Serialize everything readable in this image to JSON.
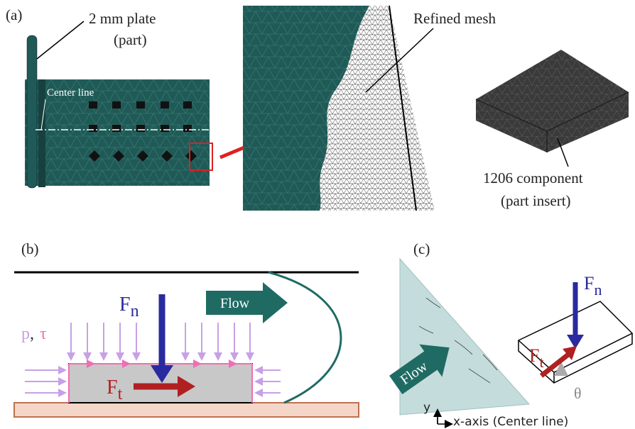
{
  "panel_a": {
    "label": "(a)",
    "plate_label": [
      "2 mm plate",
      "(part)"
    ],
    "center_line": "Center line",
    "mesh_label": "Refined mesh",
    "component_label": [
      "1206 component",
      "(part insert)"
    ]
  },
  "panel_b": {
    "label": "(b)",
    "flow": "Flow",
    "pressure": "p",
    "comma": ",",
    "shear": "τ",
    "normal_force": {
      "symbol": "F",
      "subscript": "n"
    },
    "tangential_force": {
      "symbol": "F",
      "subscript": "t"
    }
  },
  "panel_c": {
    "label": "(c)",
    "flow": "Flow",
    "normal_force": {
      "symbol": "F",
      "subscript": "n"
    },
    "tangential_force": {
      "symbol": "F",
      "subscript": "t"
    },
    "angle": "θ",
    "y_axis": "y",
    "x_axis": "x-axis (Center line)"
  }
}
